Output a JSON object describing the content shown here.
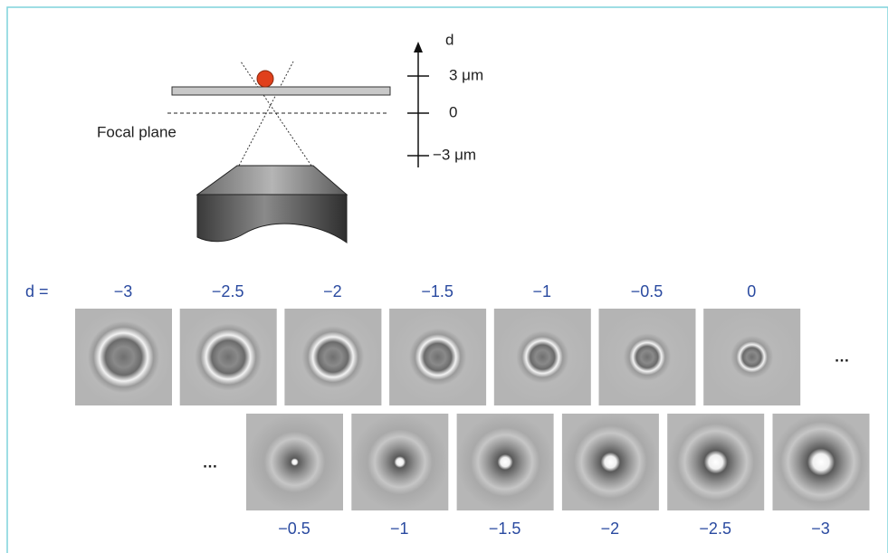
{
  "axis": {
    "label": "d",
    "ticks": [
      "3 μm",
      "0",
      "−3 μm"
    ]
  },
  "focal_plane": "Focal plane",
  "row_label": "d =",
  "top_row": [
    "−3",
    "−2.5",
    "−2",
    "−1.5",
    "−1",
    "−0.5",
    "0"
  ],
  "top_more": "…",
  "bottom_more": "…",
  "bottom_row": [
    "−0.5",
    "−1",
    "−1.5",
    "−2",
    "−2.5",
    "−3"
  ]
}
